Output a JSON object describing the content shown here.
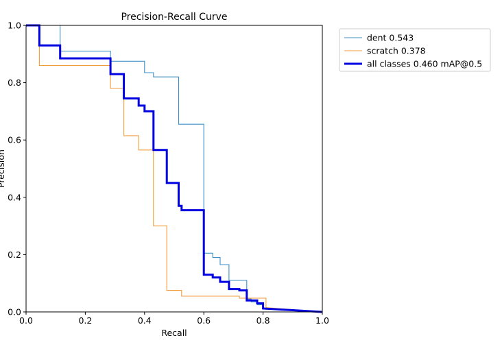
{
  "chart_data": {
    "type": "line",
    "title": "Precision-Recall Curve",
    "xlabel": "Recall",
    "ylabel": "Precision",
    "xlim": [
      0,
      1
    ],
    "ylim": [
      0,
      1
    ],
    "xticks": [
      "0.0",
      "0.2",
      "0.4",
      "0.6",
      "0.8",
      "1.0"
    ],
    "yticks": [
      "0.0",
      "0.2",
      "0.4",
      "0.6",
      "0.8",
      "1.0"
    ],
    "grid": false,
    "legend_position": "outside-top-right",
    "series": [
      {
        "name": "dent 0.543",
        "color": "#3a8fc7",
        "width": "thin",
        "points": [
          [
            0,
            1
          ],
          [
            0.115,
            1
          ],
          [
            0.115,
            0.91
          ],
          [
            0.285,
            0.91
          ],
          [
            0.285,
            0.875
          ],
          [
            0.4,
            0.875
          ],
          [
            0.4,
            0.835
          ],
          [
            0.43,
            0.835
          ],
          [
            0.43,
            0.82
          ],
          [
            0.515,
            0.82
          ],
          [
            0.515,
            0.655
          ],
          [
            0.6,
            0.655
          ],
          [
            0.6,
            0.205
          ],
          [
            0.63,
            0.205
          ],
          [
            0.63,
            0.19
          ],
          [
            0.655,
            0.19
          ],
          [
            0.655,
            0.165
          ],
          [
            0.685,
            0.165
          ],
          [
            0.685,
            0.11
          ],
          [
            0.745,
            0.11
          ],
          [
            0.745,
            0.045
          ],
          [
            0.76,
            0.045
          ],
          [
            0.76,
            0.035
          ],
          [
            0.78,
            0.035
          ],
          [
            0.78,
            0.025
          ],
          [
            0.8,
            0.025
          ],
          [
            0.8,
            0.01
          ],
          [
            1,
            0
          ]
        ]
      },
      {
        "name": "scratch 0.378",
        "color": "#f39c3c",
        "width": "thin",
        "points": [
          [
            0,
            1
          ],
          [
            0.045,
            1
          ],
          [
            0.045,
            0.86
          ],
          [
            0.285,
            0.86
          ],
          [
            0.285,
            0.78
          ],
          [
            0.33,
            0.78
          ],
          [
            0.33,
            0.615
          ],
          [
            0.38,
            0.615
          ],
          [
            0.38,
            0.565
          ],
          [
            0.43,
            0.565
          ],
          [
            0.43,
            0.3
          ],
          [
            0.475,
            0.3
          ],
          [
            0.475,
            0.075
          ],
          [
            0.525,
            0.075
          ],
          [
            0.525,
            0.055
          ],
          [
            0.72,
            0.055
          ],
          [
            0.72,
            0.048
          ],
          [
            0.81,
            0.048
          ],
          [
            0.81,
            0.015
          ],
          [
            1,
            0
          ]
        ]
      },
      {
        "name": "all classes 0.460 mAP@0.5",
        "color": "#0000e0",
        "width": "thick",
        "points": [
          [
            0,
            1
          ],
          [
            0.045,
            1
          ],
          [
            0.045,
            0.93
          ],
          [
            0.115,
            0.93
          ],
          [
            0.115,
            0.885
          ],
          [
            0.285,
            0.885
          ],
          [
            0.285,
            0.83
          ],
          [
            0.33,
            0.83
          ],
          [
            0.33,
            0.745
          ],
          [
            0.38,
            0.745
          ],
          [
            0.38,
            0.72
          ],
          [
            0.4,
            0.72
          ],
          [
            0.4,
            0.7
          ],
          [
            0.43,
            0.7
          ],
          [
            0.43,
            0.565
          ],
          [
            0.475,
            0.565
          ],
          [
            0.475,
            0.45
          ],
          [
            0.515,
            0.45
          ],
          [
            0.515,
            0.37
          ],
          [
            0.525,
            0.37
          ],
          [
            0.525,
            0.355
          ],
          [
            0.6,
            0.355
          ],
          [
            0.6,
            0.13
          ],
          [
            0.63,
            0.13
          ],
          [
            0.63,
            0.12
          ],
          [
            0.655,
            0.12
          ],
          [
            0.655,
            0.105
          ],
          [
            0.685,
            0.105
          ],
          [
            0.685,
            0.08
          ],
          [
            0.72,
            0.08
          ],
          [
            0.72,
            0.075
          ],
          [
            0.745,
            0.075
          ],
          [
            0.745,
            0.04
          ],
          [
            0.78,
            0.04
          ],
          [
            0.78,
            0.03
          ],
          [
            0.8,
            0.03
          ],
          [
            0.8,
            0.012
          ],
          [
            1,
            0
          ]
        ]
      }
    ]
  }
}
